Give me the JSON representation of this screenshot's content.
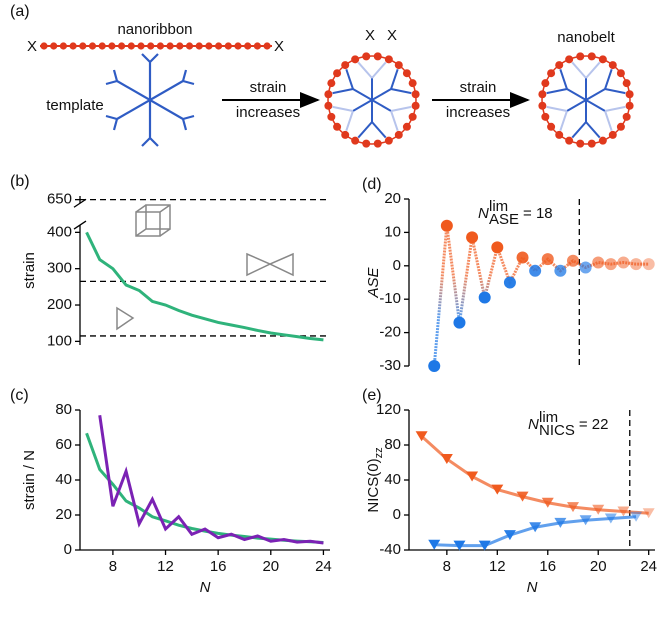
{
  "diagram": {
    "label": "(a)",
    "nanoribbon": "nanoribbon",
    "ribbon_ends": [
      "X",
      "X"
    ],
    "template": "template",
    "arrow1": [
      "strain",
      "increases"
    ],
    "arrow2": [
      "strain",
      "increases"
    ],
    "ring_ends": [
      "X",
      "X"
    ],
    "nanobelt": "nanobelt"
  },
  "chart_data": [
    {
      "type": "line",
      "panel": "(b)",
      "ylabel": "strain",
      "x": [
        6,
        7,
        8,
        9,
        10,
        11,
        12,
        13,
        14,
        15,
        16,
        17,
        18,
        19,
        20,
        21,
        22,
        23,
        24
      ],
      "series": [
        {
          "color": "#2fb37b",
          "values": [
            400,
            325,
            300,
            255,
            240,
            210,
            200,
            185,
            172,
            162,
            152,
            145,
            138,
            130,
            123,
            118,
            113,
            108,
            104
          ]
        }
      ],
      "xlim": [
        5.5,
        24.5
      ],
      "ylim": [
        90,
        660
      ],
      "yticks": [
        100,
        200,
        300,
        400,
        650
      ],
      "y_break": [
        420,
        640
      ],
      "hlines": [
        650,
        265,
        115
      ]
    },
    {
      "type": "line",
      "panel": "(c)",
      "ylabel": "strain / N",
      "xlabel": "N",
      "x": [
        6,
        7,
        8,
        9,
        10,
        11,
        12,
        13,
        14,
        15,
        16,
        17,
        18,
        19,
        20,
        21,
        22,
        23,
        24
      ],
      "series": [
        {
          "color": "#2fb37b",
          "values": [
            66.7,
            46,
            37.5,
            28,
            24,
            19,
            16.7,
            14.2,
            12.3,
            10.8,
            9.5,
            8.5,
            7.7,
            6.8,
            6.2,
            5.6,
            5.1,
            4.7,
            4.3
          ]
        },
        {
          "color": "#7b22b4",
          "values": [
            null,
            77,
            25,
            45,
            15,
            29,
            12,
            19,
            9,
            12,
            7,
            9,
            6,
            8,
            5,
            6,
            4.5,
            5,
            4
          ]
        }
      ],
      "xlim": [
        5.5,
        24.5
      ],
      "ylim": [
        0,
        80
      ],
      "yticks": [
        0,
        20,
        40,
        60,
        80
      ],
      "xticks": [
        8,
        12,
        16,
        20,
        24
      ]
    },
    {
      "type": "line",
      "panel": "(d)",
      "ylabel": "ASE",
      "x": [
        7,
        8,
        9,
        10,
        11,
        12,
        13,
        14,
        15,
        16,
        17,
        18,
        19,
        20,
        21,
        22,
        23,
        24
      ],
      "series": [
        {
          "marker": "circle",
          "color_positive": "#f05a1e",
          "color_negative": "#1e78e6",
          "values": [
            -30,
            12,
            -17,
            8.5,
            -9.5,
            5.5,
            -5,
            2.5,
            -1.5,
            2,
            -1.5,
            1.5,
            -0.5,
            1,
            0.5,
            1,
            0.5,
            0.5
          ]
        }
      ],
      "xlim": [
        5,
        24.5
      ],
      "ylim": [
        -30,
        20
      ],
      "yticks": [
        -30,
        -20,
        -10,
        0,
        10,
        20
      ],
      "vline": 18.5,
      "annotation": {
        "symbol": "N",
        "sup": "lim",
        "sub": "ASE",
        "text": "= 18"
      }
    },
    {
      "type": "line",
      "panel": "(e)",
      "ylabel": [
        "NICS(0)",
        "zz"
      ],
      "xlabel": "N",
      "series": [
        {
          "marker": "triangle-down",
          "color": "#f05a1e",
          "x": [
            6,
            8,
            10,
            12,
            14,
            16,
            18,
            20,
            22,
            24
          ],
          "values": [
            90,
            64,
            44,
            29,
            21,
            14,
            9,
            6,
            4,
            2
          ]
        },
        {
          "marker": "triangle-down",
          "color": "#1e78e6",
          "x": [
            7,
            9,
            11,
            13,
            15,
            17,
            19,
            21,
            23
          ],
          "values": [
            -34,
            -35,
            -35,
            -23,
            -14,
            -9,
            -6,
            -4,
            -2
          ]
        }
      ],
      "xlim": [
        5,
        24.5
      ],
      "ylim": [
        -40,
        120
      ],
      "yticks": [
        -40,
        0,
        40,
        80,
        120
      ],
      "xticks": [
        8,
        12,
        16,
        20,
        24
      ],
      "vline": 22.5,
      "annotation": {
        "symbol": "N",
        "sup": "lim",
        "sub": "NICS",
        "text": "= 22"
      }
    }
  ]
}
